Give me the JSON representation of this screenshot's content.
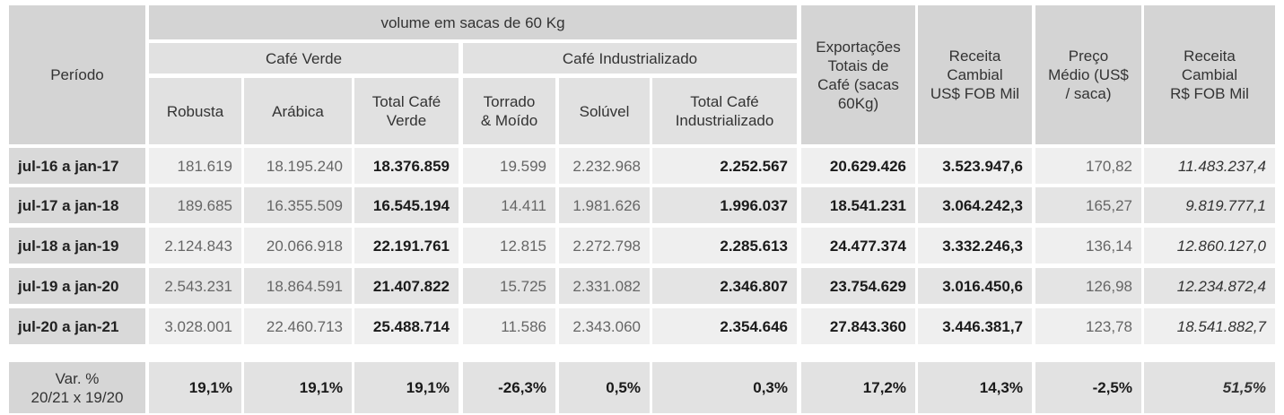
{
  "header": {
    "volume_group": "volume em sacas de 60 Kg",
    "periodo": "Período",
    "cafe_verde": "Café Verde",
    "cafe_industrializado": "Café Industrializado",
    "robusta": "Robusta",
    "arabica": "Arábica",
    "total_verde": "Total Café\nVerde",
    "torrado": "Torrado\n& Moído",
    "soluvel": "Solúvel",
    "total_ind": "Total Café\nIndustrializado",
    "exportacoes": "Exportações\nTotais de\nCafé (sacas\n60Kg)",
    "receita_usd": "Receita\nCambial\nUS$ FOB Mil",
    "preco": "Preço\nMédio (US$\n/ saca)",
    "receita_brl": "Receita\nCambial\nR$ FOB Mil"
  },
  "rows": [
    {
      "periodo": "jul-16 a jan-17",
      "robusta": "181.619",
      "arabica": "18.195.240",
      "total_verde": "18.376.859",
      "torrado": "19.599",
      "soluvel": "2.232.968",
      "total_ind": "2.252.567",
      "exportacoes": "20.629.426",
      "receita_usd": "3.523.947,6",
      "preco": "170,82",
      "receita_brl": "11.483.237,4"
    },
    {
      "periodo": "jul-17 a jan-18",
      "robusta": "189.685",
      "arabica": "16.355.509",
      "total_verde": "16.545.194",
      "torrado": "14.411",
      "soluvel": "1.981.626",
      "total_ind": "1.996.037",
      "exportacoes": "18.541.231",
      "receita_usd": "3.064.242,3",
      "preco": "165,27",
      "receita_brl": "9.819.777,1"
    },
    {
      "periodo": "jul-18 a jan-19",
      "robusta": "2.124.843",
      "arabica": "20.066.918",
      "total_verde": "22.191.761",
      "torrado": "12.815",
      "soluvel": "2.272.798",
      "total_ind": "2.285.613",
      "exportacoes": "24.477.374",
      "receita_usd": "3.332.246,3",
      "preco": "136,14",
      "receita_brl": "12.860.127,0"
    },
    {
      "periodo": "jul-19 a jan-20",
      "robusta": "2.543.231",
      "arabica": "18.864.591",
      "total_verde": "21.407.822",
      "torrado": "15.725",
      "soluvel": "2.331.082",
      "total_ind": "2.346.807",
      "exportacoes": "23.754.629",
      "receita_usd": "3.016.450,6",
      "preco": "126,98",
      "receita_brl": "12.234.872,4"
    },
    {
      "periodo": "jul-20 a jan-21",
      "robusta": "3.028.001",
      "arabica": "22.460.713",
      "total_verde": "25.488.714",
      "torrado": "11.586",
      "soluvel": "2.343.060",
      "total_ind": "2.354.646",
      "exportacoes": "27.843.360",
      "receita_usd": "3.446.381,7",
      "preco": "123,78",
      "receita_brl": "18.541.882,7"
    }
  ],
  "variation": {
    "label": "Var. %\n20/21 x 19/20",
    "robusta": "19,1%",
    "arabica": "19,1%",
    "total_verde": "19,1%",
    "torrado": "-26,3%",
    "soluvel": "0,5%",
    "total_ind": "0,3%",
    "exportacoes": "17,2%",
    "receita_usd": "14,3%",
    "preco": "-2,5%",
    "receita_brl": "51,5%"
  }
}
